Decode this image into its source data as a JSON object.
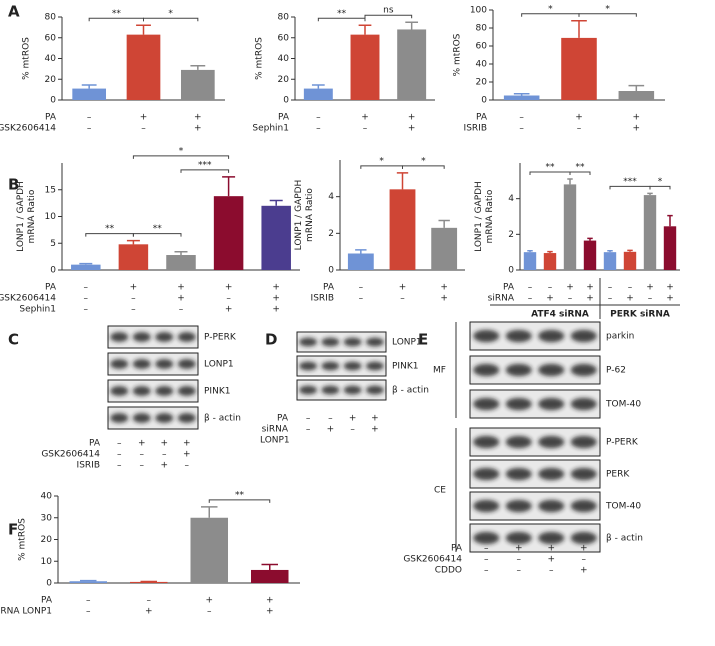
{
  "panels": [
    "A",
    "B",
    "C",
    "D",
    "E",
    "F"
  ],
  "chart_data": [
    {
      "type": "bar",
      "ylabel": [
        "% mtROS"
      ],
      "values": [
        11,
        63,
        29
      ],
      "errors": [
        3.5,
        9,
        4
      ],
      "colors": [
        "#6f93d6",
        "#cf4535",
        "#8c8c8c"
      ],
      "ylim": [
        0,
        80
      ],
      "yticks": [
        0,
        20,
        40,
        60,
        80
      ],
      "conditions": [
        {
          "name": "PA",
          "marks": [
            "–",
            "+",
            "+"
          ]
        },
        {
          "name": "GSK2606414",
          "marks": [
            "–",
            "–",
            "+"
          ]
        }
      ],
      "annotations": [
        {
          "text": "**",
          "from": 0,
          "to": 1
        },
        {
          "text": "*",
          "from": 1,
          "to": 2
        }
      ]
    },
    {
      "type": "bar",
      "ylabel": [
        "% mtROS"
      ],
      "values": [
        11,
        63,
        68
      ],
      "errors": [
        3.5,
        9,
        7
      ],
      "colors": [
        "#6f93d6",
        "#cf4535",
        "#8c8c8c"
      ],
      "ylim": [
        0,
        80
      ],
      "yticks": [
        0,
        20,
        40,
        60,
        80
      ],
      "conditions": [
        {
          "name": "PA",
          "marks": [
            "–",
            "+",
            "+"
          ]
        },
        {
          "name": "Sephin1",
          "marks": [
            "–",
            "–",
            "+"
          ]
        }
      ],
      "annotations": [
        {
          "text": "**",
          "from": 0,
          "to": 1
        },
        {
          "text": "ns",
          "from": 1,
          "to": 2
        }
      ]
    },
    {
      "type": "bar",
      "ylabel": [
        "% mtROS"
      ],
      "values": [
        5,
        69,
        10
      ],
      "errors": [
        2,
        19,
        6
      ],
      "colors": [
        "#6f93d6",
        "#cf4535",
        "#8c8c8c"
      ],
      "ylim": [
        0,
        100
      ],
      "yticks": [
        0,
        20,
        40,
        60,
        80,
        100
      ],
      "conditions": [
        {
          "name": "PA",
          "marks": [
            "–",
            "+",
            "+"
          ]
        },
        {
          "name": "ISRIB",
          "marks": [
            "–",
            "–",
            "+"
          ]
        }
      ],
      "annotations": [
        {
          "text": "*",
          "from": 0,
          "to": 1
        },
        {
          "text": "*",
          "from": 1,
          "to": 2
        }
      ]
    },
    {
      "type": "bar",
      "ylabel": [
        "LONP1 / GAPDH",
        "mRNA Ratio"
      ],
      "values": [
        1,
        4.8,
        2.8,
        13.8,
        12
      ],
      "errors": [
        0.2,
        0.7,
        0.6,
        3.6,
        1
      ],
      "colors": [
        "#6f93d6",
        "#cf4535",
        "#8c8c8c",
        "#8b0c2e",
        "#4b3d8f"
      ],
      "ylim": [
        0,
        20
      ],
      "yticks": [
        0,
        5,
        10,
        15
      ],
      "conditions": [
        {
          "name": "PA",
          "marks": [
            "–",
            "+",
            "+",
            "+",
            "+"
          ]
        },
        {
          "name": "GSK2606414",
          "marks": [
            "–",
            "–",
            "+",
            "–",
            "+"
          ]
        },
        {
          "name": "Sephin1",
          "marks": [
            "–",
            "–",
            "–",
            "+",
            "+"
          ]
        }
      ],
      "annotations": [
        {
          "text": "**",
          "from": 0,
          "to": 1
        },
        {
          "text": "**",
          "from": 1,
          "to": 2
        },
        {
          "text": "***",
          "from": 2,
          "to": 3
        },
        {
          "text": "*",
          "from": 1,
          "to": 3
        }
      ]
    },
    {
      "type": "bar",
      "ylabel": [
        "LONP1 / GAPDH",
        "mRNA Ratio"
      ],
      "values": [
        0.9,
        4.4,
        2.3
      ],
      "errors": [
        0.2,
        0.9,
        0.4
      ],
      "colors": [
        "#6f93d6",
        "#cf4535",
        "#8c8c8c"
      ],
      "ylim": [
        0,
        6
      ],
      "yticks": [
        0,
        2,
        4
      ],
      "conditions": [
        {
          "name": "PA",
          "marks": [
            "–",
            "+",
            "+"
          ]
        },
        {
          "name": "ISRIB",
          "marks": [
            "–",
            "–",
            "+"
          ]
        }
      ],
      "annotations": [
        {
          "text": "*",
          "from": 0,
          "to": 1
        },
        {
          "text": "*",
          "from": 1,
          "to": 2
        }
      ]
    },
    {
      "type": "bar",
      "ylabel": [
        "LONP1 / GAPDH",
        "mRNA Ratio"
      ],
      "values": [
        1,
        0.95,
        4.8,
        1.65,
        1,
        1.02,
        4.2,
        2.45
      ],
      "errors": [
        0.08,
        0.08,
        0.3,
        0.12,
        0.08,
        0.08,
        0.1,
        0.6
      ],
      "colors": [
        "#6f93d6",
        "#cf4535",
        "#8c8c8c",
        "#8b0c2e",
        "#6f93d6",
        "#cf4535",
        "#8c8c8c",
        "#8b0c2e"
      ],
      "ylim": [
        0,
        6
      ],
      "yticks": [
        0,
        2,
        4
      ],
      "conditions": [
        {
          "name": "PA",
          "marks": [
            "–",
            "–",
            "+",
            "+",
            "–",
            "–",
            "+",
            "+"
          ]
        },
        {
          "name": "siRNA",
          "marks": [
            "–",
            "+",
            "–",
            "+",
            "–",
            "+",
            "–",
            "+"
          ]
        }
      ],
      "groups": [
        "ATF4 siRNA",
        "PERK siRNA"
      ],
      "annotations": [
        {
          "text": "**",
          "from": 0,
          "to": 2
        },
        {
          "text": "**",
          "from": 2,
          "to": 3
        },
        {
          "text": "***",
          "from": 4,
          "to": 6
        },
        {
          "text": "*",
          "from": 6,
          "to": 7
        }
      ]
    },
    {
      "type": "bar",
      "ylabel": [
        "% mtROS"
      ],
      "values": [
        0.8,
        0.5,
        30,
        6
      ],
      "errors": [
        0.3,
        0.2,
        5,
        2.5
      ],
      "colors": [
        "#6f93d6",
        "#cf4535",
        "#8c8c8c",
        "#8b0c2e"
      ],
      "ylim": [
        0,
        40
      ],
      "yticks": [
        0,
        10,
        20,
        30,
        40
      ],
      "conditions": [
        {
          "name": "PA",
          "marks": [
            "–",
            "–",
            "+",
            "+"
          ]
        },
        {
          "name": "siRNA LONP1",
          "marks": [
            "–",
            "+",
            "–",
            "+"
          ]
        }
      ],
      "annotations": [
        {
          "text": "**",
          "from": 2,
          "to": 3
        }
      ]
    }
  ],
  "blots": [
    {
      "bands": [
        "P-PERK",
        "LONP1",
        "PINK1",
        "β - actin"
      ],
      "conditions": [
        {
          "name": "PA",
          "marks": [
            "–",
            "+",
            "+",
            "+"
          ]
        },
        {
          "name": "GSK2606414",
          "marks": [
            "–",
            "–",
            "–",
            "+"
          ]
        },
        {
          "name": "ISRIB",
          "marks": [
            "–",
            "–",
            "+",
            "–"
          ]
        }
      ]
    },
    {
      "bands": [
        "LONP1",
        "PINK1",
        "β - actin"
      ],
      "conditions": [
        {
          "name": "PA",
          "marks": [
            "–",
            "–",
            "+",
            "+"
          ]
        },
        {
          "name": "siRNA",
          "marks": [
            "–",
            "+",
            "–",
            "+"
          ]
        }
      ],
      "note": "LONP1"
    },
    {
      "groups": [
        {
          "name": "MF",
          "bands": [
            "parkin",
            "P-62",
            "TOM-40"
          ]
        },
        {
          "name": "CE",
          "bands": [
            "P-PERK",
            "PERK",
            "TOM-40",
            "β - actin"
          ]
        }
      ],
      "conditions": [
        {
          "name": "PA",
          "marks": [
            "–",
            "+",
            "+",
            "+"
          ]
        },
        {
          "name": "GSK2606414",
          "marks": [
            "–",
            "–",
            "+",
            "–"
          ]
        },
        {
          "name": "CDDO",
          "marks": [
            "–",
            "–",
            "–",
            "+"
          ]
        }
      ]
    }
  ]
}
